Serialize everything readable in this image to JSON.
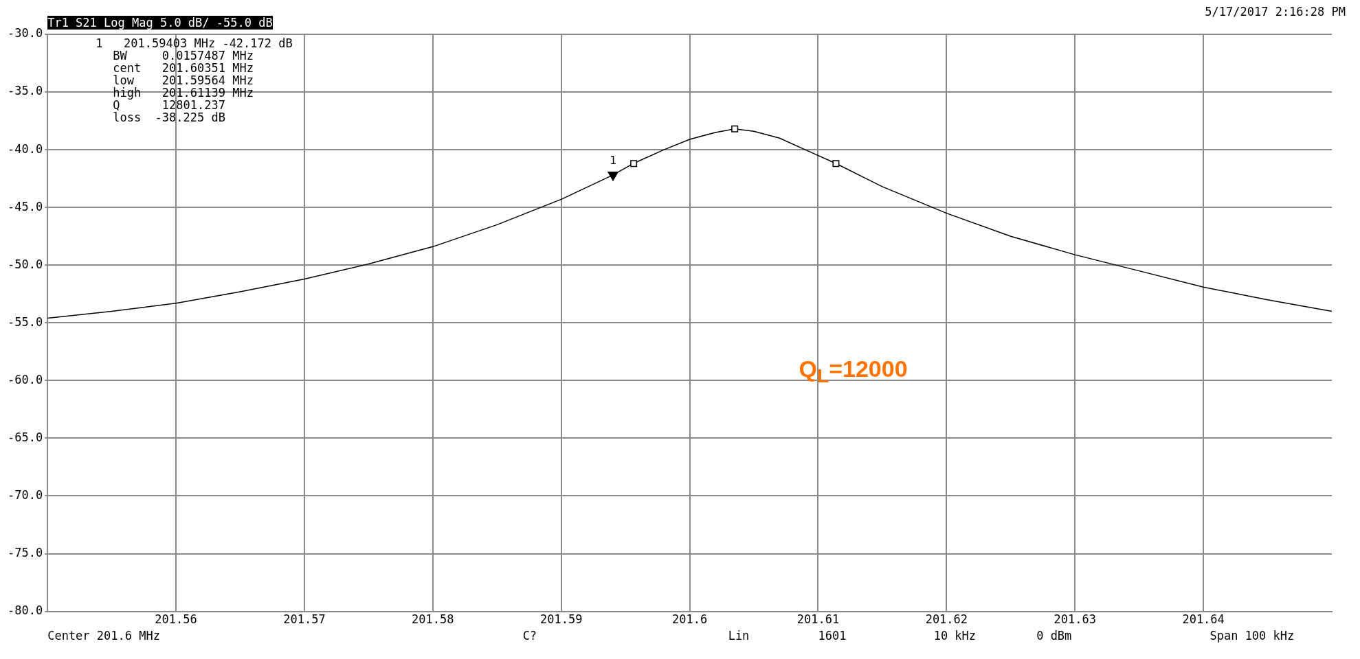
{
  "chart_data": {
    "type": "line",
    "title": "Tr1 S21 Log Mag 5.0 dB/ -55.0 dB",
    "xlim": [
      201.55,
      201.65
    ],
    "xticks": [
      201.56,
      201.57,
      201.58,
      201.59,
      201.6,
      201.61,
      201.62,
      201.63,
      201.64
    ],
    "ylim": [
      -80,
      -30
    ],
    "yticks": [
      {
        "value": -80,
        "label": "-80.0"
      },
      {
        "value": -75,
        "label": "-75.0"
      },
      {
        "value": -70,
        "label": "-70.0"
      },
      {
        "value": -65,
        "label": "-65.0"
      },
      {
        "value": -60,
        "label": "-60.0"
      },
      {
        "value": -55,
        "label": "-55.0"
      },
      {
        "value": -50,
        "label": "-50.0"
      },
      {
        "value": -45,
        "label": "-45.0"
      },
      {
        "value": -40,
        "label": "-40.0"
      },
      {
        "value": -35,
        "label": "-35.0"
      },
      {
        "value": -30,
        "label": "-30.0"
      }
    ],
    "grid": true,
    "legend": false,
    "series": [
      {
        "type": "line",
        "color": "#000000",
        "marker": "none",
        "line_style": "solid",
        "x": [
          201.55,
          201.555,
          201.56,
          201.565,
          201.57,
          201.575,
          201.58,
          201.585,
          201.59,
          201.594,
          201.5956,
          201.598,
          201.6,
          201.602,
          201.6035,
          201.605,
          201.607,
          201.609,
          201.6114,
          201.615,
          201.62,
          201.625,
          201.63,
          201.635,
          201.64,
          201.645,
          201.65
        ],
        "values": [
          -54.6,
          -54.0,
          -53.3,
          -52.3,
          -51.2,
          -49.9,
          -48.4,
          -46.5,
          -44.3,
          -42.2,
          -41.2,
          -40.0,
          -39.1,
          -38.5,
          -38.2,
          -38.4,
          -39.0,
          -40.0,
          -41.2,
          -43.2,
          -45.5,
          -47.5,
          -49.1,
          -50.5,
          -51.9,
          -53.0,
          -54.0
        ]
      },
      {
        "type": "scatter",
        "color": "#000000",
        "marker": "square",
        "x": [
          201.59564,
          201.60351,
          201.61139
        ],
        "values": [
          -41.2,
          -38.2,
          -41.2
        ]
      },
      {
        "type": "scatter",
        "color": "#000000",
        "marker": "triangle",
        "x": [
          201.59403
        ],
        "values": [
          -42.172
        ]
      }
    ],
    "annotations": [
      "5/17/2017 2:16:28 PM",
      "1   201.59403 MHz -42.172 dB",
      "BW     0.0157487 MHz",
      "cent   201.60351 MHz",
      "low    201.59564 MHz",
      "high   201.61139 MHz",
      "Q      12801.237",
      "loss  -38.225 dB",
      "Center 201.6 MHz",
      "C?",
      "Lin",
      "1601",
      "10 kHz",
      "0 dBm",
      "Span 100 kHz",
      "Q$_{L}$=12000",
      {
        "text": "1",
        "x": 201.59403,
        "y": -42.172
      }
    ]
  }
}
